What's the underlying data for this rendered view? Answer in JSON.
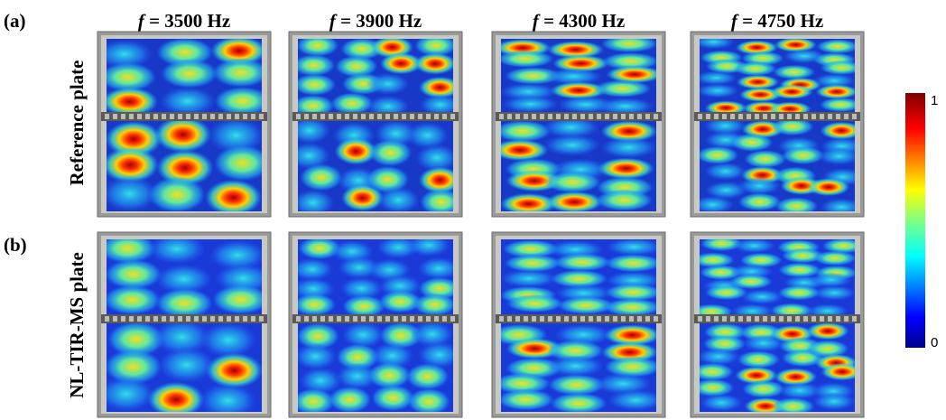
{
  "panels": [
    {
      "label": "(a)",
      "row_title": "Reference plate"
    },
    {
      "label": "(b)",
      "row_title": "NL-TIR-MS plate"
    }
  ],
  "columns": [
    {
      "symbol": "f",
      "text": "= 3500 Hz"
    },
    {
      "symbol": "f",
      "text": "= 3900 Hz"
    },
    {
      "symbol": "f",
      "text": "= 4300 Hz"
    },
    {
      "symbol": "f",
      "text": "= 4750 Hz"
    }
  ],
  "colorbar": {
    "max": 1,
    "min": 0
  }
}
